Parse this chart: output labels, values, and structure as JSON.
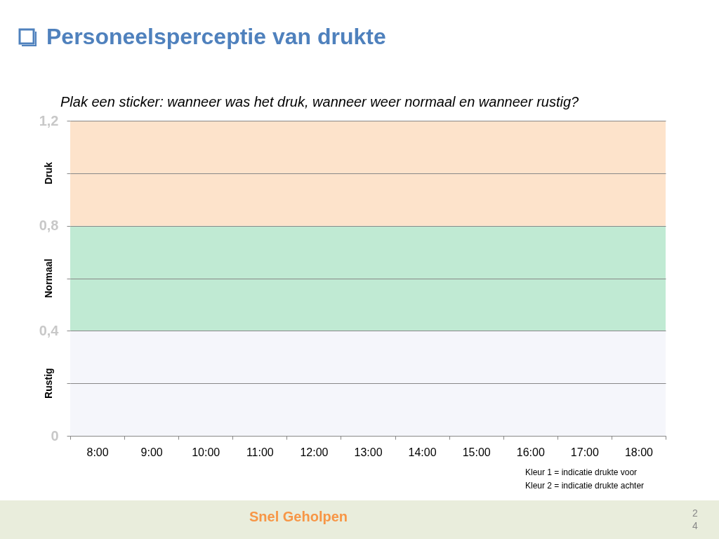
{
  "chart_data": {
    "type": "bar",
    "title": "Personeelsperceptie van drukte",
    "subtitle": "Plak een sticker: wanneer was het druk, wanneer weer normaal en wanneer rustig?",
    "categories": [
      "8:00",
      "9:00",
      "10:00",
      "11:00",
      "12:00",
      "13:00",
      "14:00",
      "15:00",
      "16:00",
      "17:00",
      "18:00"
    ],
    "bands": [
      {
        "axis": "y",
        "from": 0,
        "to": 0.4,
        "label": "Rustig",
        "color": "#f5f6fb"
      },
      {
        "axis": "y",
        "from": 0.4,
        "to": 0.8,
        "label": "Normaal",
        "color": "#c0ead3"
      },
      {
        "axis": "y",
        "from": 0.8,
        "to": 1.2,
        "label": "Druk",
        "color": "#fde3cb"
      }
    ],
    "ylim": [
      0,
      1.2
    ],
    "yticks": [
      0,
      {
        "value": 0.2,
        "label": null
      },
      {
        "value": 0.4,
        "label": "0,4"
      },
      {
        "value": 0.6,
        "label": null
      },
      {
        "value": 0.8,
        "label": "0,8"
      },
      {
        "value": 1.0,
        "label": null
      },
      {
        "value": 1.2,
        "label": "1,2"
      }
    ],
    "grid": "y",
    "annotations": [
      "Kleur 1 = indicatie drukte voor",
      "Kleur 2 = indicatie drukte achter",
      "Snel Geholpen",
      "24"
    ]
  }
}
